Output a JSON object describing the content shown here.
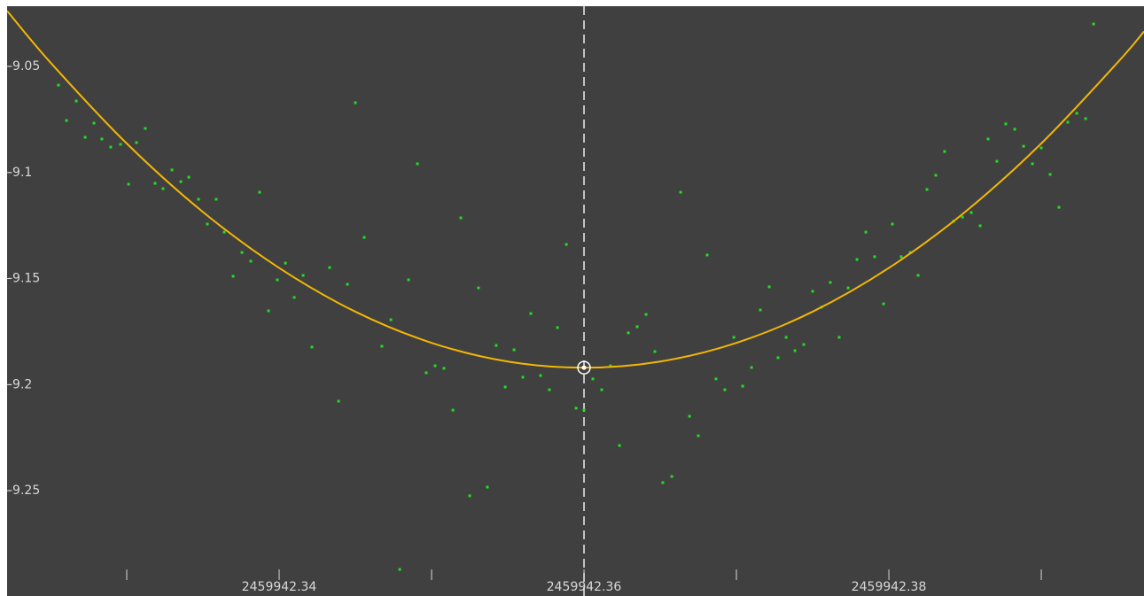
{
  "chart_data": {
    "type": "scatter",
    "background": "#404040",
    "color": "#22dd22",
    "xlim": [
      2459942.32215,
      2459942.39674
    ],
    "ylim": [
      -9.2892,
      -9.0216
    ],
    "xticks": [
      2459942.34,
      2459942.36,
      2459942.38
    ],
    "xminorticks": [
      2459942.33,
      2459942.35,
      2459942.37,
      2459942.39
    ],
    "yticks": [
      -9.05,
      -9.1,
      -9.15,
      -9.2,
      -9.25
    ],
    "grid": false,
    "x": [
      2459942.32552,
      2459942.32605,
      2459942.32669,
      2459942.32727,
      2459942.32785,
      2459942.32837,
      2459942.32895,
      2459942.32959,
      2459942.33012,
      2459942.33064,
      2459942.33122,
      2459942.33186,
      2459942.33238,
      2459942.33297,
      2459942.33355,
      2459942.33407,
      2459942.33471,
      2459942.33529,
      2459942.33587,
      2459942.3364,
      2459942.33698,
      2459942.33756,
      2459942.33814,
      2459942.33872,
      2459942.3393,
      2459942.33988,
      2459942.34041,
      2459942.34099,
      2459942.34157,
      2459942.34215,
      2459942.34331,
      2459942.3439,
      2459942.34448,
      2459942.345,
      2459942.34558,
      2459942.34674,
      2459942.34733,
      2459942.34791,
      2459942.34849,
      2459942.34907,
      2459942.34965,
      2459942.35023,
      2459942.35081,
      2459942.3514,
      2459942.35192,
      2459942.3525,
      2459942.35308,
      2459942.35366,
      2459942.35424,
      2459942.35483,
      2459942.35541,
      2459942.35599,
      2459942.35651,
      2459942.35715,
      2459942.35773,
      2459942.35826,
      2459942.35884,
      2459942.35948,
      2459942.36,
      2459942.36058,
      2459942.36116,
      2459942.36174,
      2459942.36233,
      2459942.36291,
      2459942.36349,
      2459942.36407,
      2459942.36465,
      2459942.36517,
      2459942.36576,
      2459942.36634,
      2459942.36692,
      2459942.3675,
      2459942.36808,
      2459942.36866,
      2459942.36924,
      2459942.36983,
      2459942.37041,
      2459942.37099,
      2459942.37157,
      2459942.37215,
      2459942.37273,
      2459942.37326,
      2459942.37384,
      2459942.37442,
      2459942.375,
      2459942.37558,
      2459942.37616,
      2459942.37674,
      2459942.37733,
      2459942.37791,
      2459942.37849,
      2459942.37907,
      2459942.37965,
      2459942.38023,
      2459942.38081,
      2459942.3814,
      2459942.38192,
      2459942.3825,
      2459942.38308,
      2459942.38366,
      2459942.38424,
      2459942.38483,
      2459942.38541,
      2459942.38599,
      2459942.38651,
      2459942.38709,
      2459942.38767,
      2459942.38826,
      2459942.38884,
      2459942.38942,
      2459942.39,
      2459942.39058,
      2459942.39116,
      2459942.39174,
      2459942.39233,
      2459942.39291,
      2459942.39343
    ],
    "values": [
      -9.0588,
      -9.0755,
      -9.0663,
      -9.0834,
      -9.0767,
      -9.0842,
      -9.088,
      -9.0867,
      -9.1055,
      -9.0859,
      -9.0792,
      -9.1051,
      -9.1076,
      -9.0988,
      -9.1043,
      -9.1022,
      -9.1126,
      -9.1243,
      -9.1126,
      -9.1281,
      -9.1489,
      -9.1377,
      -9.1418,
      -9.1093,
      -9.1652,
      -9.1506,
      -9.1427,
      -9.1589,
      -9.1485,
      -9.1823,
      -9.1448,
      -9.2078,
      -9.1527,
      -9.0671,
      -9.1306,
      -9.1819,
      -9.1694,
      -9.2871,
      -9.1506,
      -9.0959,
      -9.1944,
      -9.1911,
      -9.1923,
      -9.212,
      -9.1214,
      -9.2524,
      -9.1544,
      -9.2483,
      -9.1815,
      -9.2011,
      -9.1836,
      -9.1965,
      -9.1665,
      -9.1957,
      -9.2024,
      -9.1731,
      -9.1339,
      -9.2111,
      -9.212,
      -9.1973,
      -9.2024,
      -9.1911,
      -9.2287,
      -9.1756,
      -9.1727,
      -9.1669,
      -9.1844,
      -9.2462,
      -9.2433,
      -9.1093,
      -9.2149,
      -9.2241,
      -9.1389,
      -9.1973,
      -9.2024,
      -9.1777,
      -9.2007,
      -9.1919,
      -9.1648,
      -9.1539,
      -9.1873,
      -9.1777,
      -9.184,
      -9.1811,
      -9.156,
      -9.1635,
      -9.1518,
      -9.1777,
      -9.1544,
      -9.141,
      -9.1281,
      -9.1397,
      -9.1619,
      -9.1243,
      -9.1397,
      -9.1377,
      -9.1485,
      -9.108,
      -9.1013,
      -9.0901,
      -9.123,
      -9.121,
      -9.1189,
      -9.1251,
      -9.0842,
      -9.0947,
      -9.0771,
      -9.0796,
      -9.0876,
      -9.0959,
      -9.0884,
      -9.1009,
      -9.1164,
      -9.0763,
      -9.0721,
      -9.0746,
      -9.03
    ],
    "fit": {
      "color": "#f2b705",
      "x": [
        2459942.32215,
        2459942.325,
        2459942.33,
        2459942.335,
        2459942.34,
        2459942.345,
        2459942.35,
        2459942.355,
        2459942.36,
        2459942.365,
        2459942.37,
        2459942.375,
        2459942.38,
        2459942.385,
        2459942.39,
        2459942.395,
        2459942.39674
      ],
      "values": [
        -9.0238,
        -9.0482,
        -9.0863,
        -9.1186,
        -9.145,
        -9.1656,
        -9.1803,
        -9.1891,
        -9.192,
        -9.1891,
        -9.1803,
        -9.1656,
        -9.145,
        -9.1186,
        -9.0863,
        -9.0482,
        -9.0335
      ]
    },
    "minimum": {
      "x": 2459942.36,
      "y": -9.192
    }
  }
}
